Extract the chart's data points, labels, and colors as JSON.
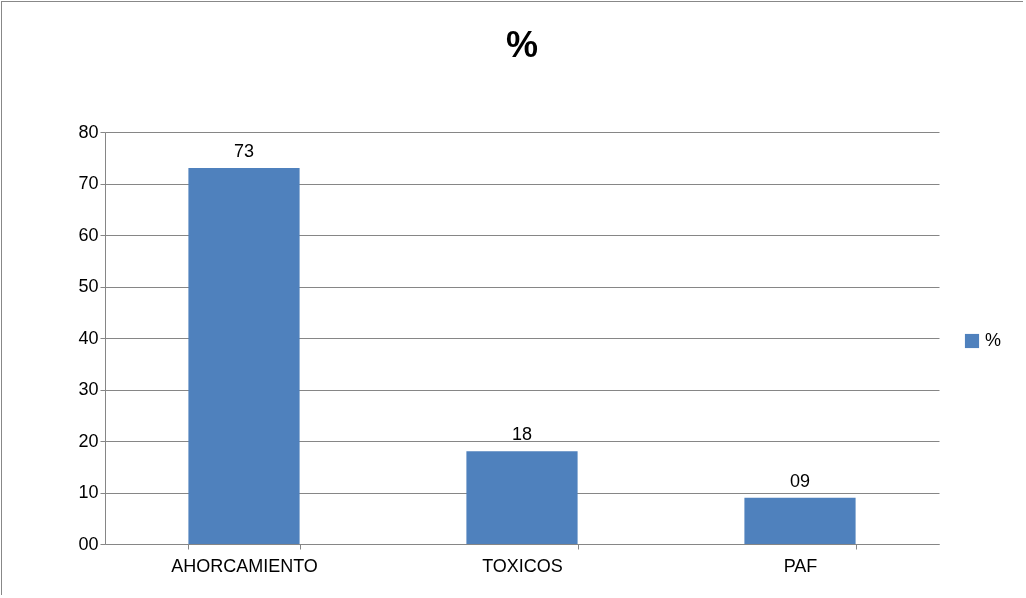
{
  "chart_data": {
    "type": "bar",
    "title": "%",
    "categories": [
      "AHORCAMIENTO",
      "TOXICOS",
      "PAF"
    ],
    "series": [
      {
        "name": "%",
        "color": "#4f81bd",
        "values": [
          73,
          18,
          9
        ],
        "value_labels": [
          "73",
          "18",
          "09"
        ]
      }
    ],
    "ylim": [
      0,
      80
    ],
    "yticks": [
      {
        "value": 0,
        "label": "00"
      },
      10,
      20,
      30,
      40,
      50,
      60,
      70,
      80
    ],
    "grid": "y",
    "legend": "right"
  }
}
